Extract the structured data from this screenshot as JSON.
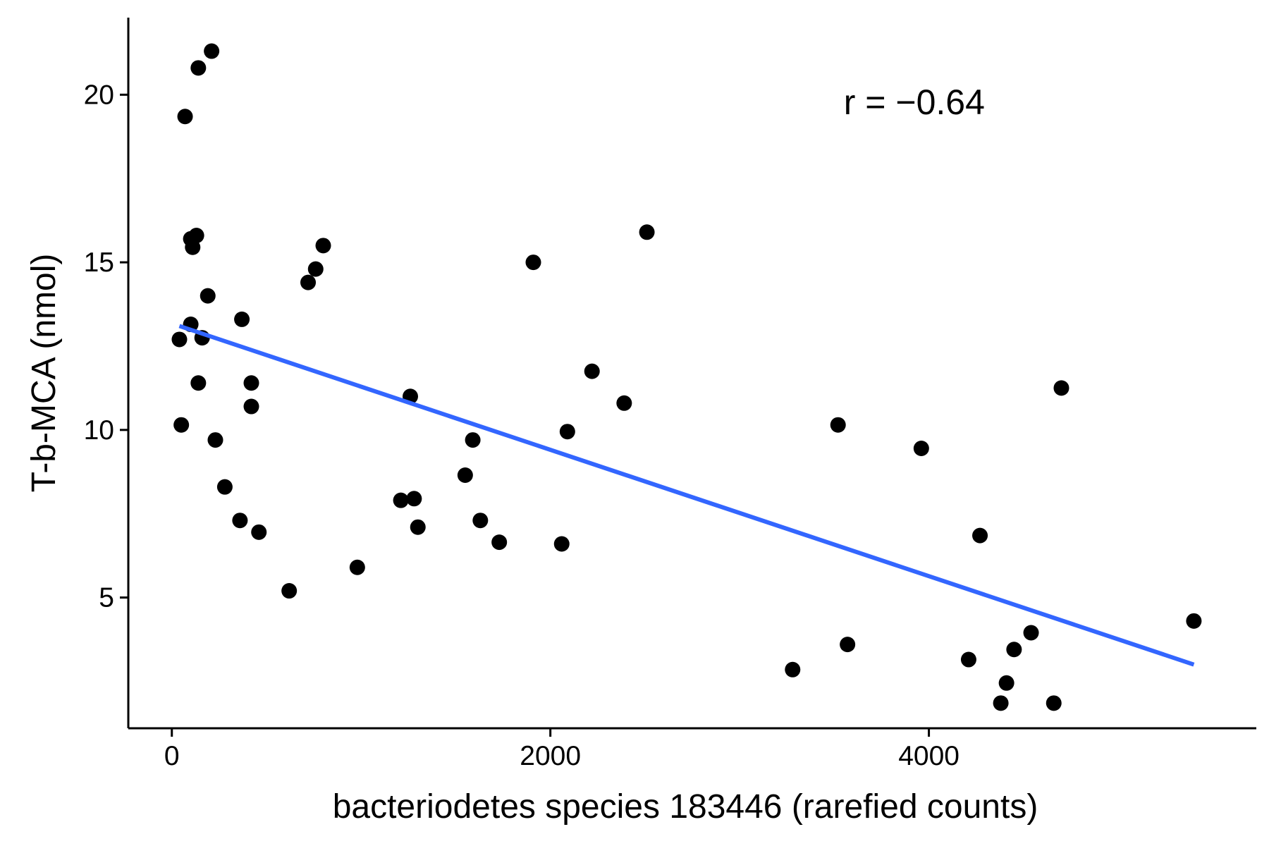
{
  "chart_data": {
    "type": "scatter",
    "title": "",
    "xlabel": "bacteriodetes species 183446 (rarefied counts)",
    "ylabel": "T-b-MCA (nmol)",
    "xlim": [
      -230,
      5730
    ],
    "ylim": [
      1.1,
      22.3
    ],
    "xticks": [
      0,
      2000,
      4000
    ],
    "xtick_labels": [
      "0",
      "2000",
      "4000"
    ],
    "yticks": [
      5,
      10,
      15,
      20
    ],
    "ytick_labels": [
      "5",
      "10",
      "15",
      "20"
    ],
    "grid": false,
    "legend": "none",
    "annotation": "r = −0.64",
    "annotation_position": {
      "x": 3550,
      "y": 19.8
    },
    "point_color": "#000000",
    "fit_line": {
      "color": "#3366FF",
      "x": [
        40,
        5400
      ],
      "y": [
        13.1,
        3.0
      ]
    },
    "x": [
      40,
      50,
      70,
      100,
      100,
      110,
      130,
      140,
      140,
      160,
      190,
      210,
      230,
      280,
      360,
      370,
      420,
      420,
      460,
      620,
      720,
      760,
      800,
      980,
      1210,
      1260,
      1280,
      1300,
      1550,
      1590,
      1630,
      1730,
      1910,
      2060,
      2090,
      2220,
      2390,
      2510,
      3280,
      3520,
      3570,
      3960,
      4210,
      4270,
      4380,
      4410,
      4450,
      4540,
      4660,
      4700,
      5400
    ],
    "y": [
      12.7,
      10.15,
      19.35,
      13.15,
      15.7,
      15.45,
      15.8,
      11.4,
      20.8,
      12.75,
      14.0,
      21.3,
      9.7,
      8.3,
      7.3,
      13.3,
      11.4,
      10.7,
      6.95,
      5.2,
      14.4,
      14.8,
      15.5,
      5.9,
      7.9,
      11.0,
      7.95,
      7.1,
      8.65,
      9.7,
      7.3,
      6.65,
      15.0,
      6.6,
      9.95,
      11.75,
      10.8,
      15.9,
      2.85,
      10.15,
      3.6,
      9.45,
      3.15,
      6.85,
      1.85,
      2.45,
      3.45,
      3.95,
      1.85,
      11.25,
      4.3
    ]
  }
}
